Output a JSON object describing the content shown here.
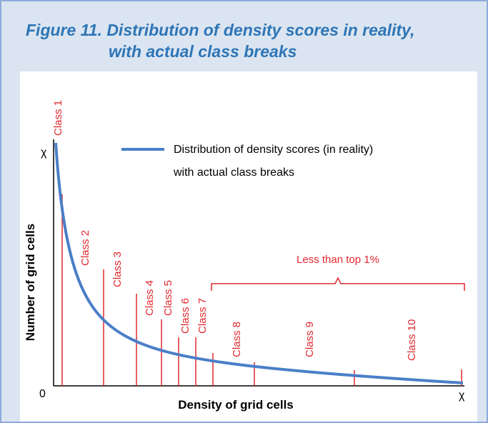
{
  "header": {
    "title_lines": [
      "Figure 11. Distribution of density scores in reality,",
      "with actual class breaks"
    ]
  },
  "axes": {
    "y_label": "Number of grid cells",
    "x_label": "Density of grid cells",
    "y_max": "χ",
    "origin": "0",
    "x_max": "χ"
  },
  "legend": {
    "lines": [
      "Distribution of density scores (in reality)",
      "with actual class breaks"
    ]
  },
  "classes": [
    "Class 1",
    "Class 2",
    "Class 3",
    "Class 4",
    "Class 5",
    "Class 6",
    "Class 7",
    "Class 8",
    "Class 9",
    "Class 10"
  ],
  "bracket_label": "Less than top  1%"
}
